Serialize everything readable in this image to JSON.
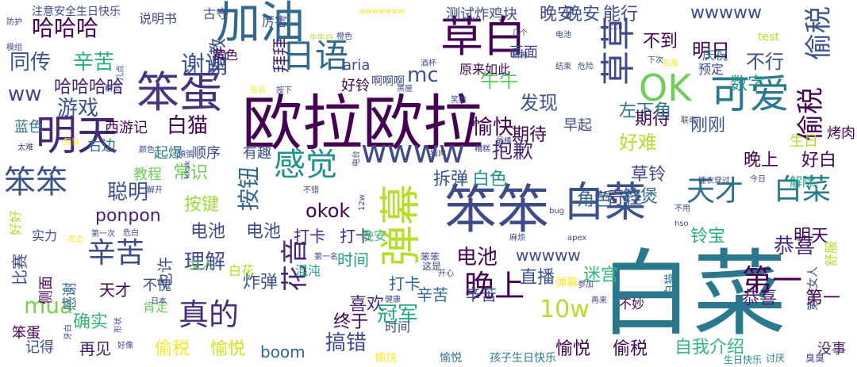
{
  "words": [
    {
      "text": "白菜",
      "color": "#2a788e"
    },
    {
      "text": "欧拉欧拉",
      "color": "#440154"
    },
    {
      "text": "笨笨",
      "color": "#3e4a89"
    },
    {
      "text": "加油",
      "color": "#31688e"
    },
    {
      "text": "草白",
      "color": "#440154"
    },
    {
      "text": "笨蛋",
      "color": "#46327e"
    },
    {
      "text": "明天",
      "color": "#482677"
    },
    {
      "text": "白菜",
      "color": "#3b528b"
    },
    {
      "text": "弹幕",
      "color": "#b5de2b"
    },
    {
      "text": "可爱",
      "color": "#2a788e"
    },
    {
      "text": "OK",
      "color": "#6ece58"
    },
    {
      "text": "草草",
      "color": "#3e4a89"
    },
    {
      "text": "日语",
      "color": "#31688e"
    },
    {
      "text": "wwww",
      "color": "#3e4a89"
    },
    {
      "text": "感觉",
      "color": "#21918c"
    },
    {
      "text": "笨笨",
      "color": "#3b528b"
    },
    {
      "text": "辛苦",
      "color": "#3e4a89"
    },
    {
      "text": "晚上",
      "color": "#440154"
    },
    {
      "text": "真的",
      "color": "#472d7b"
    },
    {
      "text": "第一",
      "color": "#440154"
    },
    {
      "text": "花音",
      "color": "#482677"
    },
    {
      "text": "偷税",
      "color": "#3b528b"
    },
    {
      "text": "偷税",
      "color": "#440154"
    },
    {
      "text": "天才",
      "color": "#2c728e"
    },
    {
      "text": "白菜",
      "color": "#2a788e"
    },
    {
      "text": "谢谢",
      "color": "#3b528b"
    },
    {
      "text": "哈哈哈",
      "color": "#440154"
    },
    {
      "text": "同传",
      "color": "#3b528b"
    },
    {
      "text": "辛苦",
      "color": "#28ae80"
    },
    {
      "text": "哈哈哈哈",
      "color": "#482173"
    },
    {
      "text": "ww",
      "color": "#3e4a89"
    },
    {
      "text": "游戏",
      "color": "#3b528b"
    },
    {
      "text": "拜拜",
      "color": "#482173"
    },
    {
      "text": "指教",
      "color": "#3e4a89"
    },
    {
      "text": "白猫",
      "color": "#440154"
    },
    {
      "text": "mc",
      "color": "#3b528b"
    },
    {
      "text": "牛牛",
      "color": "#5ec962"
    },
    {
      "text": "发现",
      "color": "#3b528b"
    },
    {
      "text": "愉快",
      "color": "#440154"
    },
    {
      "text": "抱歉",
      "color": "#482677"
    },
    {
      "text": "按钮",
      "color": "#31688e"
    },
    {
      "text": "聪明",
      "color": "#3b528b"
    },
    {
      "text": "常识",
      "color": "#6ece58"
    },
    {
      "text": "按键",
      "color": "#a0da39"
    },
    {
      "text": "mua",
      "color": "#7ad151"
    },
    {
      "text": "比赛",
      "color": "#3e4a89"
    },
    {
      "text": "理解",
      "color": "#3e4a89"
    },
    {
      "text": "电池",
      "color": "#3e4a89"
    },
    {
      "text": "电池",
      "color": "#3e4a89"
    },
    {
      "text": "电池",
      "color": "#440154"
    },
    {
      "text": "直播",
      "color": "#3b528b"
    },
    {
      "text": "恭喜",
      "color": "#482677"
    },
    {
      "text": "恭喜",
      "color": "#482173"
    },
    {
      "text": "第一",
      "color": "#440154"
    },
    {
      "text": "晚安",
      "color": "#414487"
    },
    {
      "text": "晚安",
      "color": "#3b528b"
    },
    {
      "text": "能行",
      "color": "#3e4a89"
    },
    {
      "text": "wwwww",
      "color": "#3e4a89"
    },
    {
      "text": "明日",
      "color": "#440154"
    },
    {
      "text": "不到",
      "color": "#440154"
    },
    {
      "text": "不行",
      "color": "#3b528b"
    },
    {
      "text": "数字",
      "color": "#21918c"
    },
    {
      "text": "期待",
      "color": "#440154"
    },
    {
      "text": "期待",
      "color": "#440154"
    },
    {
      "text": "明天",
      "color": "#440154"
    },
    {
      "text": "左下角",
      "color": "#2a788e"
    },
    {
      "text": "好难",
      "color": "#b5de2b"
    },
    {
      "text": "刚刚",
      "color": "#3b528b"
    },
    {
      "text": "晚上",
      "color": "#440154"
    },
    {
      "text": "好白",
      "color": "#440154"
    },
    {
      "text": "草铃",
      "color": "#3e4a89"
    },
    {
      "text": "奇怪",
      "color": "#3e4a89"
    },
    {
      "text": "拆弹",
      "color": "#3b528b"
    },
    {
      "text": "白色",
      "color": "#21918c"
    },
    {
      "text": "角色",
      "color": "#31688e"
    },
    {
      "text": "铃煲",
      "color": "#31688e"
    },
    {
      "text": "铃宝",
      "color": "#28ae80"
    },
    {
      "text": "解除",
      "color": "#20a386"
    },
    {
      "text": "10w",
      "color": "#b5de2b"
    },
    {
      "text": "okok",
      "color": "#440154"
    },
    {
      "text": "ponpon",
      "color": "#482173"
    },
    {
      "text": "打卡",
      "color": "#482677"
    },
    {
      "text": "打卡",
      "color": "#482677"
    },
    {
      "text": "打卡",
      "color": "#31688e"
    },
    {
      "text": "时间",
      "color": "#20a386"
    },
    {
      "text": "辛苦",
      "color": "#31688e"
    },
    {
      "text": "辛苦",
      "color": "#3b528b"
    },
    {
      "text": "喜欢",
      "color": "#482677"
    },
    {
      "text": "终于",
      "color": "#440154"
    },
    {
      "text": "炸弹",
      "color": "#3b528b"
    },
    {
      "text": "天才",
      "color": "#440154"
    },
    {
      "text": "不愧",
      "color": "#3b528b"
    },
    {
      "text": "确实",
      "color": "#35b779"
    },
    {
      "text": "再见",
      "color": "#482173"
    },
    {
      "text": "偷税",
      "color": "#fde725"
    },
    {
      "text": "愉悦",
      "color": "#d8e219"
    },
    {
      "text": "boom",
      "color": "#31688e"
    },
    {
      "text": "搞错",
      "color": "#3e4a89"
    },
    {
      "text": "冠军",
      "color": "#22a884"
    },
    {
      "text": "愉悦",
      "color": "#440154"
    },
    {
      "text": "偷税",
      "color": "#440154"
    },
    {
      "text": "自我介绍",
      "color": "#35b779"
    },
    {
      "text": "没事",
      "color": "#482173"
    },
    {
      "text": "不妙",
      "color": "#440154"
    },
    {
      "text": "迷宫",
      "color": "#35b779"
    },
    {
      "text": "wwwww",
      "color": "#3e4a89"
    },
    {
      "text": "西游记",
      "color": "#440154"
    },
    {
      "text": "右边",
      "color": "#2a788e"
    },
    {
      "text": "起爆",
      "color": "#2a788e"
    },
    {
      "text": "顺序",
      "color": "#3e4a89"
    },
    {
      "text": "有趣",
      "color": "#3e4a89"
    },
    {
      "text": "教程",
      "color": "#6ece58"
    },
    {
      "text": "蓝色",
      "color": "#2a788e"
    },
    {
      "text": "注意安全生日快乐",
      "color": "#3e4a89"
    },
    {
      "text": "说明书",
      "color": "#3e4a89"
    },
    {
      "text": "古守",
      "color": "#3e4a89"
    },
    {
      "text": "厉害",
      "color": "#3b528b"
    },
    {
      "text": "测试炸鸡块",
      "color": "#3e4a89"
    },
    {
      "text": "画面",
      "color": "#3e4a89"
    },
    {
      "text": "原来如此",
      "color": "#440154"
    },
    {
      "text": "aria",
      "color": "#3e4a89"
    },
    {
      "text": "好铃",
      "color": "#440154"
    },
    {
      "text": "黄色",
      "color": "#440154"
    },
    {
      "text": "早起",
      "color": "#3e4a89"
    },
    {
      "text": "预定",
      "color": "#3e4a89"
    },
    {
      "text": "庆祝",
      "color": "#2a788e"
    },
    {
      "text": "生日",
      "color": "#b5de2b"
    },
    {
      "text": "烤肉",
      "color": "#440154"
    },
    {
      "text": "肯定",
      "color": "#6ece58"
    },
    {
      "text": "也许",
      "color": "#3e4a89"
    },
    {
      "text": "女人",
      "color": "#5ec962"
    },
    {
      "text": "实力",
      "color": "#3b528b"
    },
    {
      "text": "白花",
      "color": "#b5de2b"
    },
    {
      "text": "混沌",
      "color": "#20a386"
    },
    {
      "text": "感谢",
      "color": "#31688e"
    },
    {
      "text": "侧面",
      "color": "#440154"
    },
    {
      "text": "笨蛋",
      "color": "#440154"
    },
    {
      "text": "记得",
      "color": "#3e4a89"
    },
    {
      "text": "好好",
      "color": "#b5de2b"
    },
    {
      "text": "test",
      "color": "#b5de2b"
    },
    {
      "text": "第一女人",
      "color": "#3e4a89"
    },
    {
      "text": "舒服",
      "color": "#b5de2b"
    },
    {
      "text": "啊啊啊",
      "color": "#3e4a89"
    },
    {
      "text": "晚安",
      "color": "#35b779"
    },
    {
      "text": "时间",
      "color": "#3e4a89"
    },
    {
      "text": "白猫",
      "color": "#2a788e"
    },
    {
      "text": "弹幕",
      "color": "#fde725"
    },
    {
      "text": "愉快",
      "color": "#fde725"
    },
    {
      "text": "愉悦",
      "color": "#31688e"
    },
    {
      "text": "孩子生日快乐",
      "color": "#2a788e"
    },
    {
      "text": "生日快乐",
      "color": "#21918c"
    },
    {
      "text": "讨厌",
      "color": "#2a788e"
    },
    {
      "text": "臭臭",
      "color": "#3e4a89"
    },
    {
      "text": "笨笨",
      "color": "#3e4a89"
    },
    {
      "text": "这是",
      "color": "#3e4a89"
    },
    {
      "text": "第一名",
      "color": "#3e4a89"
    },
    {
      "text": "开心",
      "color": "#3e4a89"
    },
    {
      "text": "健康",
      "color": "#3e4a89"
    },
    {
      "text": "再来",
      "color": "#3e4a89"
    },
    {
      "text": "参加",
      "color": "#3e4a89"
    },
    {
      "text": "日本",
      "color": "#3e4a89"
    },
    {
      "text": "好像",
      "color": "#3e4a89"
    },
    {
      "text": "牙白",
      "color": "#3e4a89"
    },
    {
      "text": "形状",
      "color": "#3e4a89"
    },
    {
      "text": "第一次",
      "color": "#3e4a89"
    },
    {
      "text": "危白",
      "color": "#3e4a89"
    },
    {
      "text": "左边",
      "color": "#fde725"
    },
    {
      "text": "wwwwwww",
      "color": "#fde725"
    },
    {
      "text": "防护",
      "color": "#3e4a89"
    },
    {
      "text": "模组",
      "color": "#3e4a89"
    },
    {
      "text": "几点",
      "color": "#3e4a89"
    },
    {
      "text": "牛牛白",
      "color": "#b5de2b"
    },
    {
      "text": "橙色",
      "color": "#3e4a89"
    },
    {
      "text": "几个",
      "color": "#3e4a89"
    },
    {
      "text": "电池",
      "color": "#3e4a89"
    },
    {
      "text": "ccll",
      "color": "#3e4a89"
    },
    {
      "text": "精神",
      "color": "#3e4a89"
    },
    {
      "text": "结束",
      "color": "#3e4a89"
    },
    {
      "text": "危险",
      "color": "#3e4a89"
    },
    {
      "text": "下次",
      "color": "#3e4a89"
    },
    {
      "text": "拉面",
      "color": "#fde725"
    },
    {
      "text": "联动",
      "color": "#3e4a89"
    },
    {
      "text": "睡衣穿过",
      "color": "#3e4a89"
    },
    {
      "text": "今日",
      "color": "#3e4a89"
    },
    {
      "text": "不用",
      "color": "#3e4a89"
    },
    {
      "text": "hso",
      "color": "#3e4a89"
    },
    {
      "text": "指示",
      "color": "#3e4a89"
    },
    {
      "text": "bug",
      "color": "#3e4a89"
    },
    {
      "text": "apex",
      "color": "#3e4a89"
    },
    {
      "text": "麻烦",
      "color": "#3e4a89"
    },
    {
      "text": "最棒",
      "color": "#3e4a89"
    },
    {
      "text": "糟糕",
      "color": "#3e4a89"
    },
    {
      "text": "笑脸",
      "color": "#3e4a89"
    },
    {
      "text": "猫肉",
      "color": "#3e4a89"
    },
    {
      "text": "黑屋",
      "color": "#3e4a89"
    },
    {
      "text": "告诉",
      "color": "#fde725"
    },
    {
      "text": "按下",
      "color": "#3e4a89"
    },
    {
      "text": "精灵",
      "color": "#3e4a89"
    },
    {
      "text": "太难",
      "color": "#3e4a89"
    },
    {
      "text": "担当",
      "color": "#fde725"
    },
    {
      "text": "kksk",
      "color": "#3e4a89"
    },
    {
      "text": "颜色",
      "color": "#3e4a89"
    },
    {
      "text": "頂張",
      "color": "#3e4a89"
    },
    {
      "text": "解开",
      "color": "#3e4a89"
    },
    {
      "text": "不错",
      "color": "#3e4a89"
    },
    {
      "text": "12w",
      "color": "#3e4a89"
    },
    {
      "text": "电台",
      "color": "#3e4a89"
    },
    {
      "text": "酒杯",
      "color": "#3e4a89"
    },
    {
      "text": "红色",
      "color": "#3e4a89"
    },
    {
      "text": "太好了",
      "color": "#3e4a89"
    },
    {
      "text": "骗人",
      "color": "#3e4a89"
    }
  ]
}
